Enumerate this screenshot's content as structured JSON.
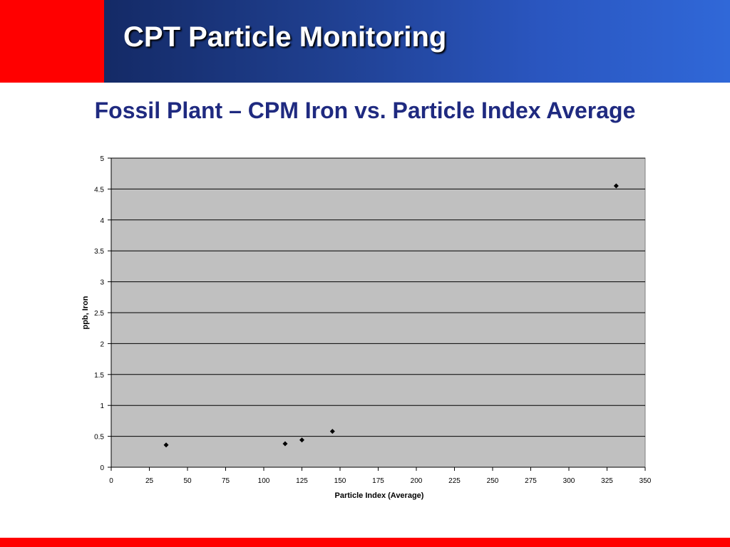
{
  "slide": {
    "title": "CPT Particle Monitoring",
    "subtitle": "Fossil Plant – CPM Iron vs. Particle Index Average"
  },
  "colors": {
    "header_red": "#ff0000",
    "header_blue_dark": "#142a66",
    "header_blue_light": "#3068d8",
    "subtitle_text": "#1f2a80",
    "plot_background": "#c0c0c0",
    "footer_red": "#ff0000"
  },
  "chart_data": {
    "type": "scatter",
    "title": "",
    "xlabel": "Particle Index (Average)",
    "ylabel": "ppb, Iron",
    "xlim": [
      0,
      350
    ],
    "ylim": [
      0,
      5
    ],
    "x_ticks": [
      "0",
      "25",
      "50",
      "75",
      "100",
      "125",
      "150",
      "175",
      "200",
      "225",
      "250",
      "275",
      "300",
      "325",
      "350"
    ],
    "y_ticks": [
      "0",
      "0.5",
      "1",
      "1.5",
      "2",
      "2.5",
      "3",
      "3.5",
      "4",
      "4.5",
      "5"
    ],
    "grid": "horizontal",
    "legend": "none",
    "marker": "diamond",
    "series": [
      {
        "points": [
          {
            "x": 36,
            "y": 0.36
          },
          {
            "x": 114,
            "y": 0.38
          },
          {
            "x": 125,
            "y": 0.44
          },
          {
            "x": 145,
            "y": 0.58
          },
          {
            "x": 331,
            "y": 4.55
          }
        ]
      }
    ]
  }
}
